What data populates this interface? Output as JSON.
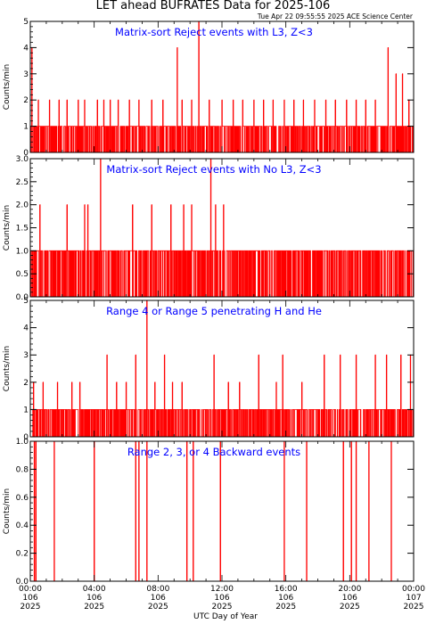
{
  "title": "LET ahead BUFRATES Data for 2025-106",
  "timestamp": "Tue Apr 22 09:55:55 2025 ACE Science Center",
  "xlabel": "UTC Day of Year",
  "x_ticks": [
    {
      "time": "00:00",
      "day": "106",
      "year": "2025"
    },
    {
      "time": "04:00",
      "day": "106",
      "year": "2025"
    },
    {
      "time": "08:00",
      "day": "106",
      "year": "2025"
    },
    {
      "time": "12:00",
      "day": "106",
      "year": "2025"
    },
    {
      "time": "16:00",
      "day": "106",
      "year": "2025"
    },
    {
      "time": "20:00",
      "day": "106",
      "year": "2025"
    },
    {
      "time": "00:00",
      "day": "107",
      "year": "2025"
    }
  ],
  "colors": {
    "series": "#ff0000",
    "panel_title": "#0000ff",
    "axes": "#000000"
  },
  "chart_data": [
    {
      "type": "line",
      "title": "Matrix-sort Reject events with L3, Z<3",
      "ylabel": "Counts/min",
      "xlim": [
        0,
        24
      ],
      "ylim": [
        0,
        5
      ],
      "yticks": [
        "0",
        "1",
        "2",
        "3",
        "4",
        "5"
      ],
      "series": [
        {
          "base_level": [
            0,
            1
          ],
          "spikes": [
            {
              "x": 0.1,
              "y": 4
            },
            {
              "x": 0.5,
              "y": 2
            },
            {
              "x": 1.2,
              "y": 2
            },
            {
              "x": 1.8,
              "y": 2
            },
            {
              "x": 2.3,
              "y": 2
            },
            {
              "x": 3.0,
              "y": 2
            },
            {
              "x": 3.4,
              "y": 2
            },
            {
              "x": 4.2,
              "y": 2
            },
            {
              "x": 4.6,
              "y": 2
            },
            {
              "x": 5.0,
              "y": 2
            },
            {
              "x": 5.5,
              "y": 2
            },
            {
              "x": 6.2,
              "y": 2
            },
            {
              "x": 6.8,
              "y": 2
            },
            {
              "x": 7.6,
              "y": 2
            },
            {
              "x": 8.3,
              "y": 2
            },
            {
              "x": 9.2,
              "y": 4
            },
            {
              "x": 9.5,
              "y": 2
            },
            {
              "x": 10.1,
              "y": 2
            },
            {
              "x": 10.55,
              "y": 5
            },
            {
              "x": 11.2,
              "y": 2
            },
            {
              "x": 12.0,
              "y": 2
            },
            {
              "x": 12.7,
              "y": 2
            },
            {
              "x": 13.3,
              "y": 2
            },
            {
              "x": 14.0,
              "y": 2
            },
            {
              "x": 14.6,
              "y": 2
            },
            {
              "x": 15.2,
              "y": 2
            },
            {
              "x": 15.9,
              "y": 2
            },
            {
              "x": 16.5,
              "y": 2
            },
            {
              "x": 17.1,
              "y": 2
            },
            {
              "x": 17.8,
              "y": 2
            },
            {
              "x": 18.5,
              "y": 2
            },
            {
              "x": 19.1,
              "y": 2
            },
            {
              "x": 19.8,
              "y": 2
            },
            {
              "x": 20.4,
              "y": 2
            },
            {
              "x": 21.0,
              "y": 2
            },
            {
              "x": 21.6,
              "y": 2
            },
            {
              "x": 22.4,
              "y": 4
            },
            {
              "x": 22.9,
              "y": 3
            },
            {
              "x": 23.3,
              "y": 3
            },
            {
              "x": 23.7,
              "y": 2
            }
          ]
        }
      ]
    },
    {
      "type": "line",
      "title": "Matrix-sort Reject events with No L3, Z<3",
      "ylabel": "Counts/min",
      "xlim": [
        0,
        24
      ],
      "ylim": [
        0,
        3
      ],
      "yticks": [
        "0.0",
        "0.5",
        "1.0",
        "1.5",
        "2.0",
        "2.5",
        "3.0"
      ],
      "series": [
        {
          "base_level": [
            0,
            1
          ],
          "spikes": [
            {
              "x": 0.6,
              "y": 2
            },
            {
              "x": 2.3,
              "y": 2
            },
            {
              "x": 3.4,
              "y": 2
            },
            {
              "x": 3.6,
              "y": 2
            },
            {
              "x": 4.4,
              "y": 3
            },
            {
              "x": 6.4,
              "y": 2
            },
            {
              "x": 7.6,
              "y": 2
            },
            {
              "x": 8.8,
              "y": 2
            },
            {
              "x": 9.6,
              "y": 2
            },
            {
              "x": 10.1,
              "y": 2
            },
            {
              "x": 11.3,
              "y": 3
            },
            {
              "x": 11.6,
              "y": 2
            },
            {
              "x": 12.1,
              "y": 2
            }
          ]
        }
      ]
    },
    {
      "type": "line",
      "title": "Range 4 or Range 5 penetrating H and He",
      "ylabel": "Counts/min",
      "xlim": [
        0,
        24
      ],
      "ylim": [
        0,
        5
      ],
      "yticks": [
        "0",
        "1",
        "2",
        "3",
        "4",
        "5"
      ],
      "series": [
        {
          "base_level": [
            0,
            1
          ],
          "spikes": [
            {
              "x": 0.2,
              "y": 2
            },
            {
              "x": 0.8,
              "y": 2
            },
            {
              "x": 1.7,
              "y": 2
            },
            {
              "x": 2.6,
              "y": 2
            },
            {
              "x": 3.1,
              "y": 2
            },
            {
              "x": 4.8,
              "y": 3
            },
            {
              "x": 5.4,
              "y": 2
            },
            {
              "x": 6.0,
              "y": 2
            },
            {
              "x": 6.6,
              "y": 3
            },
            {
              "x": 7.3,
              "y": 5
            },
            {
              "x": 7.8,
              "y": 2
            },
            {
              "x": 8.4,
              "y": 3
            },
            {
              "x": 8.9,
              "y": 2
            },
            {
              "x": 9.5,
              "y": 2
            },
            {
              "x": 11.5,
              "y": 3
            },
            {
              "x": 12.4,
              "y": 2
            },
            {
              "x": 13.1,
              "y": 2
            },
            {
              "x": 14.3,
              "y": 3
            },
            {
              "x": 15.4,
              "y": 2
            },
            {
              "x": 15.8,
              "y": 3
            },
            {
              "x": 17.0,
              "y": 2
            },
            {
              "x": 18.4,
              "y": 3
            },
            {
              "x": 19.4,
              "y": 3
            },
            {
              "x": 20.4,
              "y": 3
            },
            {
              "x": 21.6,
              "y": 3
            },
            {
              "x": 22.3,
              "y": 3
            },
            {
              "x": 23.2,
              "y": 3
            },
            {
              "x": 23.8,
              "y": 3
            }
          ]
        }
      ]
    },
    {
      "type": "line",
      "title": "Range 2, 3, or 4 Backward events",
      "ylabel": "Counts/min",
      "xlim": [
        0,
        24
      ],
      "ylim": [
        0,
        1
      ],
      "yticks": [
        "0.0",
        "0.2",
        "0.4",
        "0.6",
        "0.8",
        "1.0"
      ],
      "series": [
        {
          "base_level": [
            0,
            0
          ],
          "spikes": [
            {
              "x": 0.25,
              "y": 1
            },
            {
              "x": 0.35,
              "y": 1
            },
            {
              "x": 1.5,
              "y": 1
            },
            {
              "x": 4.0,
              "y": 1
            },
            {
              "x": 6.6,
              "y": 1
            },
            {
              "x": 6.8,
              "y": 1
            },
            {
              "x": 7.3,
              "y": 1
            },
            {
              "x": 9.8,
              "y": 1
            },
            {
              "x": 10.2,
              "y": 1
            },
            {
              "x": 11.9,
              "y": 1
            },
            {
              "x": 15.9,
              "y": 1
            },
            {
              "x": 17.3,
              "y": 1
            },
            {
              "x": 19.6,
              "y": 1
            },
            {
              "x": 20.1,
              "y": 1
            },
            {
              "x": 20.4,
              "y": 1
            },
            {
              "x": 21.2,
              "y": 1
            },
            {
              "x": 22.6,
              "y": 1
            }
          ]
        }
      ]
    }
  ]
}
